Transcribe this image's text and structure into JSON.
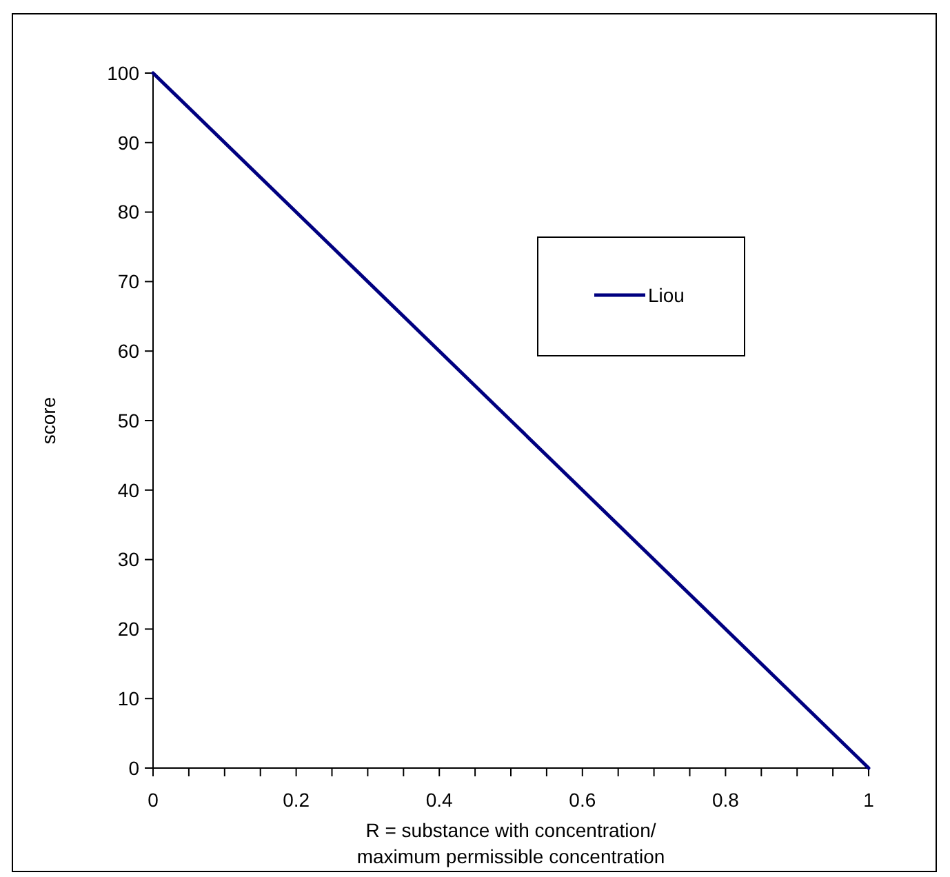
{
  "chart_data": {
    "type": "line",
    "xlabel": "R = substance with concentration/\nmaximum permissible concentration",
    "ylabel": "score",
    "x": [
      0,
      0.25,
      0.5,
      0.75,
      1
    ],
    "series": [
      {
        "name": "Liou",
        "color": "#000080",
        "values": [
          100,
          75,
          50,
          25,
          0
        ]
      }
    ],
    "xlim": [
      0,
      1
    ],
    "xticks": [
      0,
      {
        "value": 0.05,
        "label": null
      },
      {
        "value": 0.1,
        "label": null
      },
      {
        "value": 0.15,
        "label": null
      },
      0.2,
      {
        "value": 0.25,
        "label": null
      },
      {
        "value": 0.3,
        "label": null
      },
      {
        "value": 0.35,
        "label": null
      },
      0.4,
      {
        "value": 0.45,
        "label": null
      },
      {
        "value": 0.5,
        "label": null
      },
      {
        "value": 0.55,
        "label": null
      },
      0.6,
      {
        "value": 0.65,
        "label": null
      },
      {
        "value": 0.7,
        "label": null
      },
      {
        "value": 0.75,
        "label": null
      },
      0.8,
      {
        "value": 0.85,
        "label": null
      },
      {
        "value": 0.9,
        "label": null
      },
      {
        "value": 0.95,
        "label": null
      },
      1
    ],
    "ylim": [
      0,
      100
    ],
    "yticks": [
      0,
      10,
      20,
      30,
      40,
      50,
      60,
      70,
      80,
      90,
      100
    ],
    "legend": "top right",
    "marker": "none",
    "line_style": "solid",
    "grid": false
  }
}
